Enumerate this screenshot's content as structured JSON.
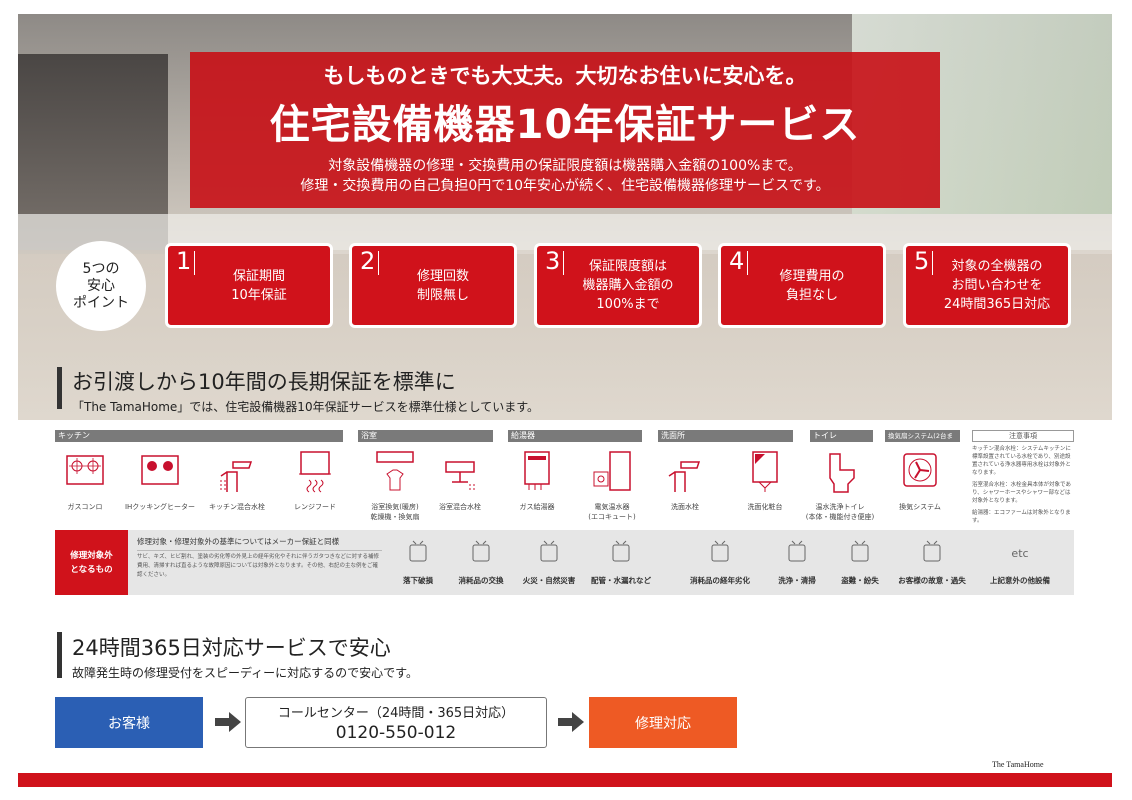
{
  "banner": {
    "tagline": "もしものときでも大丈夫。大切なお住いに安心を。",
    "title": "住宅設備機器10年保証サービス",
    "description": "対象設備機器の修理・交換費用の保証限度額は機器購入金額の100%まで。\n修理・交換費用の自己負担0円で10年安心が続く、住宅設備機器修理サービスです。"
  },
  "points": {
    "badge": "5つの\n安心\nポイント",
    "items": [
      {
        "num": "1",
        "text": "保証期間\n10年保証"
      },
      {
        "num": "2",
        "text": "修理回数\n制限無し"
      },
      {
        "num": "3",
        "text": "保証限度額は\n機器購入金額の\n100%まで"
      },
      {
        "num": "4",
        "text": "修理費用の\n負担なし"
      },
      {
        "num": "5",
        "text": "対象の全機器の\nお問い合わせを\n24時間365日対応"
      }
    ]
  },
  "section1": {
    "title": "お引渡しから10年間の長期保証を標準に",
    "subtitle": "「The TamaHome」では、住宅設備機器10年保証サービスを標準仕様としています。"
  },
  "categories": [
    "キッチン",
    "浴室",
    "給湯器",
    "洗面所",
    "トイレ",
    "換気扇システム(2台まで)"
  ],
  "equipment": [
    "ガスコンロ",
    "IHクッキングヒーター",
    "キッチン混合水栓",
    "レンジフード",
    "浴室換気(暖房)\n乾燥機・換気扇",
    "浴室混合水栓",
    "ガス給湯器",
    "電気温水器\n(エコキュート)",
    "洗面水栓",
    "洗面化粧台",
    "温水洗浄トイレ\n(本体・機能付き便座)",
    "換気システム"
  ],
  "notes": {
    "title": "注意事項",
    "items": [
      "キッチン混合水栓：システムキッチンに標準設置されている水栓であり、別途設置されている浄水器専用水栓は対象外となります。",
      "浴室混合水栓：水栓金具本体が対象であり、シャワーホースやシャワー部などは対象外となります。",
      "給湯器：エコファームは対象外となります。"
    ]
  },
  "exclusions": {
    "label": "修理対象外\nとなるもの",
    "heading": "修理対象・修理対象外の基準についてはメーカー保証と同様",
    "description": "サビ、キズ、ヒビ割れ、塗装の劣化等の外見上の経年劣化やそれに伴うガタつきなどに対する補修費用、清掃すれば直るような故障原因については対象外となります。その他、右記の主な例をご確認ください。",
    "items": [
      "落下破損",
      "消耗品の交換",
      "火災・自然災害",
      "配管・水漏れなど",
      "消耗品の経年劣化",
      "洗浄・清掃",
      "盗難・紛失",
      "お客様の故意・過失",
      "上記意外の他設備"
    ],
    "etc": "etc"
  },
  "section2": {
    "title": "24時間365日対応サービスで安心",
    "subtitle": "故障発生時の修理受付をスピーディーに対応するので安心です。"
  },
  "flow": {
    "customer": "お客様",
    "center_label": "コールセンター（24時間・365日対応）",
    "phone": "0120-550-012",
    "repair": "修理対応"
  },
  "footer": {
    "logo": "The TamaHome"
  },
  "colors": {
    "red": "#d0121b",
    "blue": "#2b5fb4",
    "orange": "#ee5a24"
  }
}
